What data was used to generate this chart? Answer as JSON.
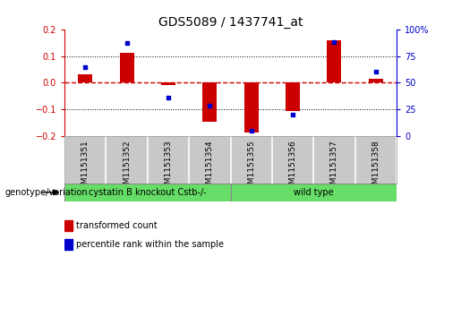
{
  "title": "GDS5089 / 1437741_at",
  "samples": [
    "GSM1151351",
    "GSM1151352",
    "GSM1151353",
    "GSM1151354",
    "GSM1151355",
    "GSM1151356",
    "GSM1151357",
    "GSM1151358"
  ],
  "red_bars": [
    0.03,
    0.113,
    -0.01,
    -0.145,
    -0.185,
    -0.105,
    0.16,
    0.015
  ],
  "blue_dots_pct": [
    65,
    87,
    36,
    29,
    5,
    20,
    88,
    60
  ],
  "ylim": [
    -0.2,
    0.2
  ],
  "left_yticks": [
    -0.2,
    -0.1,
    0.0,
    0.1,
    0.2
  ],
  "right_yticks": [
    0,
    25,
    50,
    75,
    100
  ],
  "bar_color": "#CC0000",
  "dot_color": "#0000CC",
  "zero_line_color": "#CC0000",
  "grid_color": "#000000",
  "bg_color": "#FFFFFF",
  "group1_label": "cystatin B knockout Cstb-/-",
  "group2_label": "wild type",
  "group1_indices": [
    0,
    1,
    2,
    3
  ],
  "group2_indices": [
    4,
    5,
    6,
    7
  ],
  "group_color": "#66DD66",
  "sample_area_color": "#C8C8C8",
  "genotype_label": "genotype/variation",
  "legend_red": "transformed count",
  "legend_blue": "percentile rank within the sample",
  "bar_width": 0.35,
  "title_fontsize": 10,
  "tick_fontsize": 7,
  "sample_fontsize": 6.5,
  "group_fontsize": 7,
  "legend_fontsize": 7
}
